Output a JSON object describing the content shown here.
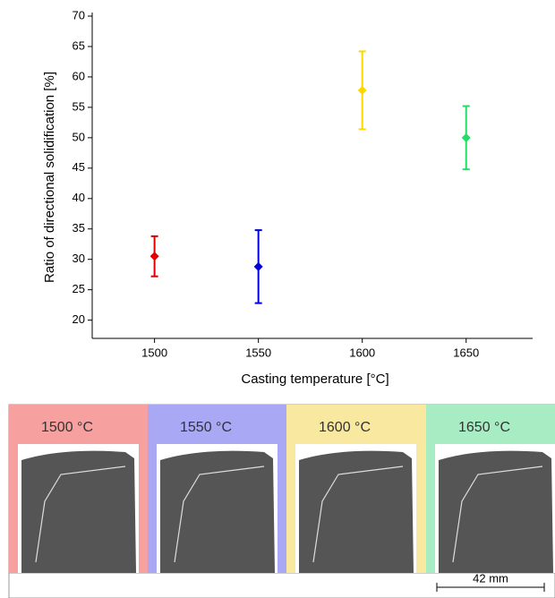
{
  "chart_data": {
    "type": "errorbar_scatter",
    "x_label": "Casting temperature [°C]",
    "y_label": "Ratio of directional solidification [%]",
    "x": [
      1500,
      1550,
      1600,
      1650
    ],
    "values": [
      30.5,
      28.8,
      57.8,
      50.0
    ],
    "errors": [
      3.3,
      6.0,
      6.4,
      5.2
    ],
    "colors": [
      "#e00000",
      "#0000e0",
      "#ffd700",
      "#22dd66"
    ],
    "xlim": [
      1470,
      1682
    ],
    "xticks": [
      1500,
      1550,
      1600,
      1650
    ],
    "ylim": [
      17,
      70
    ],
    "yticks": [
      20,
      25,
      30,
      35,
      40,
      45,
      50,
      55,
      60,
      65,
      70
    ]
  },
  "panels": [
    {
      "label": "1500 °C",
      "color": "#f6a0a0"
    },
    {
      "label": "1550 °C",
      "color": "#a8a8f4"
    },
    {
      "label": "1600 °C",
      "color": "#f8e8a0"
    },
    {
      "label": "1650 °C",
      "color": "#a8ecc4"
    }
  ],
  "scale_bar": "42 mm"
}
